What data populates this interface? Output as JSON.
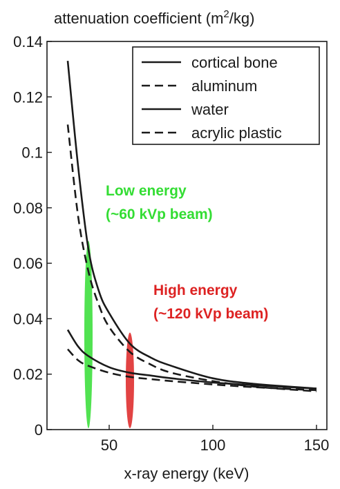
{
  "chart_data": {
    "type": "line",
    "title": "attenuation coefficient (m",
    "title_sup": "2",
    "title_tail": "/kg)",
    "xlabel": "x-ray energy (keV)",
    "xlim": [
      20,
      155
    ],
    "ylim": [
      0,
      0.14
    ],
    "xticks": [
      50,
      100,
      150
    ],
    "xtick_labels": [
      "50",
      "100",
      "150"
    ],
    "yticks": [
      0,
      0.02,
      0.04,
      0.06,
      0.08,
      0.1,
      0.12,
      0.14
    ],
    "ytick_labels": [
      "0",
      "0.02",
      "0.04",
      "0.06",
      "0.08",
      "0.1",
      "0.12",
      "0.14"
    ],
    "grid": false,
    "legend_position": "top-right",
    "series": [
      {
        "name": "cortical bone",
        "style": "solid",
        "x": [
          30,
          35,
          40,
          45,
          50,
          60,
          70,
          80,
          100,
          120,
          150
        ],
        "y": [
          0.133,
          0.095,
          0.065,
          0.05,
          0.042,
          0.031,
          0.026,
          0.023,
          0.0185,
          0.0165,
          0.0148
        ]
      },
      {
        "name": "aluminum",
        "style": "dashed",
        "x": [
          30,
          35,
          40,
          45,
          50,
          60,
          70,
          80,
          100,
          120,
          150
        ],
        "y": [
          0.11,
          0.077,
          0.057,
          0.045,
          0.037,
          0.028,
          0.0235,
          0.0205,
          0.0175,
          0.0155,
          0.0138
        ]
      },
      {
        "name": "water",
        "style": "solid",
        "x": [
          30,
          35,
          40,
          50,
          60,
          70,
          80,
          100,
          120,
          150
        ],
        "y": [
          0.036,
          0.03,
          0.0265,
          0.0225,
          0.0205,
          0.0195,
          0.0185,
          0.017,
          0.016,
          0.0148
        ]
      },
      {
        "name": "acrylic plastic",
        "style": "dashed",
        "x": [
          30,
          35,
          40,
          50,
          60,
          70,
          80,
          100,
          120,
          150
        ],
        "y": [
          0.029,
          0.025,
          0.023,
          0.0205,
          0.019,
          0.0182,
          0.0175,
          0.0163,
          0.0153,
          0.0142
        ]
      }
    ],
    "annotations": [
      {
        "lines": [
          "Low energy",
          "(~60 kVp beam)"
        ],
        "color": "#33dd33",
        "marker_x": 40
      },
      {
        "lines": [
          "High energy",
          "(~120 kVp beam)"
        ],
        "color": "#dd2222",
        "marker_x": 60
      }
    ],
    "colors": {
      "line": "#1a1a1a",
      "low_energy": "#33dd33",
      "high_energy": "#dd2222"
    }
  }
}
